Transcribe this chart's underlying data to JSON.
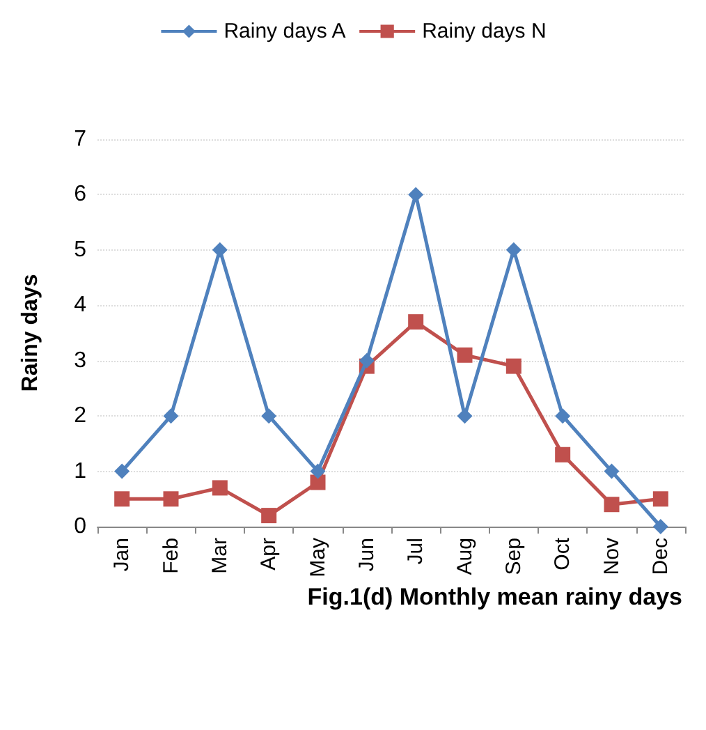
{
  "chart_data": {
    "type": "line",
    "title": "Fig.1(d) Monthly mean rainy days",
    "ylabel": "Rainy days",
    "categories": [
      "Jan",
      "Feb",
      "Mar",
      "Apr",
      "May",
      "Jun",
      "Jul",
      "Aug",
      "Sep",
      "Oct",
      "Nov",
      "Dec"
    ],
    "series": [
      {
        "name": "Rainy days A",
        "color": "#4f81bd",
        "marker": "diamond",
        "values": [
          1,
          2,
          5,
          2,
          1,
          3,
          6,
          2,
          5,
          2,
          1,
          0
        ]
      },
      {
        "name": "Rainy days N",
        "color": "#c0504d",
        "marker": "square",
        "values": [
          0.5,
          0.5,
          0.7,
          0.2,
          0.8,
          2.9,
          3.7,
          3.1,
          2.9,
          1.3,
          0.4,
          0.5
        ]
      }
    ],
    "ylim": [
      0,
      7
    ],
    "yticks": [
      0,
      1,
      2,
      3,
      4,
      5,
      6,
      7
    ],
    "grid": "y",
    "legend": "top",
    "line_style": "solid"
  }
}
